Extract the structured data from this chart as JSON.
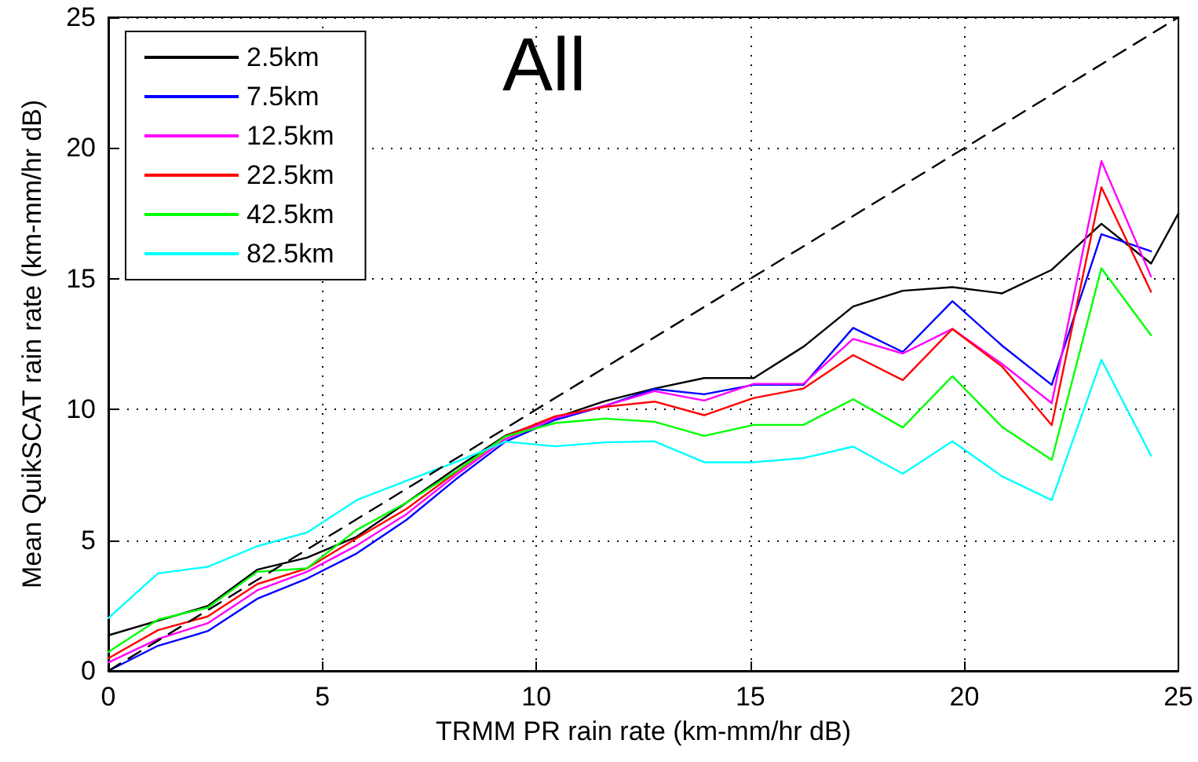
{
  "chart_data": {
    "type": "line",
    "xlabel": "TRMM PR rain rate (km-mm/hr dB)",
    "ylabel": "Mean QuikSCAT rain rate (km-mm/hr dB)",
    "annotations": [
      "All"
    ],
    "x": [
      0,
      1.16,
      2.32,
      3.48,
      4.64,
      5.8,
      6.96,
      8.12,
      9.28,
      10.44,
      11.6,
      12.76,
      13.92,
      15.08,
      16.24,
      17.4,
      18.56,
      19.72,
      20.88,
      22.04,
      23.2,
      24.36
    ],
    "xlim": [
      0,
      25
    ],
    "xticks": [
      0,
      5,
      10,
      15,
      20,
      25
    ],
    "ylim": [
      0,
      25
    ],
    "yticks": [
      0,
      5,
      10,
      15,
      20,
      25
    ],
    "grid": true,
    "legend": "top left",
    "marker": "none",
    "line_style": "solid",
    "series": [
      {
        "name": "2.5km",
        "color": "#000000",
        "x": [
          0,
          1.16,
          2.32,
          3.48,
          4.64,
          5.8,
          6.96,
          8.12,
          9.28,
          10.44,
          11.6,
          12.76,
          13.92,
          15.08,
          16.24,
          17.4,
          18.56,
          19.72,
          20.88,
          22.04,
          23.2,
          24.36,
          25
        ],
        "values": [
          1.36,
          1.92,
          2.48,
          3.87,
          4.33,
          5.13,
          6.43,
          7.75,
          9.0,
          9.68,
          10.32,
          10.8,
          11.2,
          11.2,
          12.4,
          13.94,
          14.54,
          14.68,
          14.44,
          15.34,
          17.1,
          15.58,
          17.5
        ]
      },
      {
        "name": "7.5km",
        "color": "#0000ff",
        "values": [
          0,
          0.96,
          1.52,
          2.76,
          3.53,
          4.49,
          5.77,
          7.33,
          8.77,
          9.6,
          10.14,
          10.78,
          10.58,
          10.94,
          10.94,
          13.12,
          12.2,
          14.14,
          12.44,
          10.94,
          16.7,
          16.05
        ]
      },
      {
        "name": "12.5km",
        "color": "#ff00ff",
        "values": [
          0.32,
          1.22,
          1.82,
          3.08,
          3.79,
          4.79,
          5.99,
          7.49,
          8.87,
          9.68,
          10.14,
          10.7,
          10.34,
          10.98,
          10.98,
          12.7,
          12.14,
          13.08,
          11.74,
          10.24,
          19.5,
          15.08
        ]
      },
      {
        "name": "22.5km",
        "color": "#ff0000",
        "values": [
          0.48,
          1.56,
          2.08,
          3.32,
          3.92,
          5.07,
          6.19,
          7.59,
          8.97,
          9.74,
          10.1,
          10.3,
          9.78,
          10.44,
          10.8,
          12.08,
          11.12,
          13.08,
          11.64,
          9.4,
          18.5,
          14.5
        ]
      },
      {
        "name": "42.5km",
        "color": "#00ff00",
        "values": [
          0.72,
          1.96,
          2.42,
          3.79,
          3.92,
          5.39,
          6.43,
          7.63,
          8.97,
          9.48,
          9.65,
          9.53,
          8.99,
          9.41,
          9.41,
          10.39,
          9.31,
          11.27,
          9.33,
          8.07,
          15.4,
          12.84
        ]
      },
      {
        "name": "82.5km",
        "color": "#00ffff",
        "values": [
          2.02,
          3.73,
          3.98,
          4.77,
          5.29,
          6.53,
          7.27,
          7.99,
          8.77,
          8.59,
          8.74,
          8.78,
          7.98,
          7.98,
          8.14,
          8.58,
          7.54,
          8.78,
          7.44,
          6.53,
          11.9,
          8.23
        ]
      },
      {
        "color": "#000000",
        "line_style": "dashed",
        "x": [
          0,
          25
        ],
        "values": [
          0,
          25
        ]
      }
    ]
  }
}
